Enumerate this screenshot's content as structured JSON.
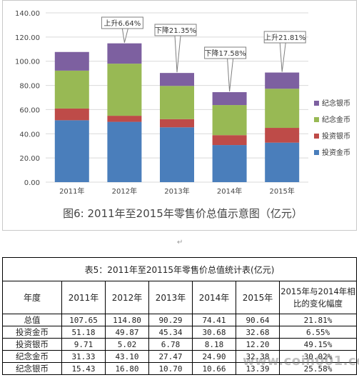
{
  "chart_data": {
    "type": "bar",
    "stacked": true,
    "categories": [
      "2011年",
      "2012年",
      "2013年",
      "2014年",
      "2015年"
    ],
    "series": [
      {
        "name": "投资金币",
        "values": [
          51.18,
          49.87,
          45.34,
          30.68,
          32.68
        ],
        "color": "#4a7ebb"
      },
      {
        "name": "投资银币",
        "values": [
          9.71,
          5.02,
          6.78,
          8.18,
          12.2
        ],
        "color": "#be4b48"
      },
      {
        "name": "纪念金币",
        "values": [
          31.33,
          43.1,
          27.47,
          24.9,
          32.38
        ],
        "color": "#98b954"
      },
      {
        "name": "纪念银币",
        "values": [
          15.43,
          16.8,
          10.7,
          10.66,
          13.39
        ],
        "color": "#7d60a0"
      }
    ],
    "legend_order": [
      "纪念银币",
      "纪念金币",
      "投资银币",
      "投资金币"
    ],
    "legend_placement": "right",
    "ylim": [
      0,
      140
    ],
    "yticks": [
      "0.00",
      "20.00",
      "40.00",
      "60.00",
      "80.00",
      "100.00",
      "120.00",
      "140.00"
    ],
    "grid": true,
    "callouts": [
      {
        "category": "2012年",
        "text": "上升6.64%"
      },
      {
        "category": "2013年",
        "text": "下降21.35%"
      },
      {
        "category": "2014年",
        "text": "下降17.58%"
      },
      {
        "category": "2015年",
        "text": "上升21.81%"
      }
    ],
    "caption": "图6: 2011年至2015年零售价总值示意图（亿元）"
  },
  "paragraph_mark": "↵",
  "table": {
    "title": "表5：2011年至20115年零售价总值统计表(亿元)",
    "headers": [
      "年度",
      "2011年",
      "2012年",
      "2013年",
      "2014年",
      "2015年",
      "2015年与2014年相比的变化幅度"
    ],
    "rows": [
      {
        "name": "总值",
        "cells": [
          "107.65",
          "114.80",
          "90.29",
          "74.41",
          "90.64",
          "21.81%"
        ]
      },
      {
        "name": "投资金币",
        "cells": [
          "51.18",
          "49.87",
          "45.34",
          "30.68",
          "32.68",
          "6.55%"
        ]
      },
      {
        "name": "投资银币",
        "cells": [
          "9.71",
          "5.02",
          "6.78",
          "8.18",
          "12.20",
          "49.15%"
        ]
      },
      {
        "name": "纪念金币",
        "cells": [
          "31.33",
          "43.10",
          "27.47",
          "24.90",
          "32.38",
          "30.02%"
        ]
      },
      {
        "name": "纪念银币",
        "cells": [
          "15.43",
          "16.80",
          "10.70",
          "10.66",
          "13.39",
          "25.58%"
        ]
      }
    ]
  },
  "watermark": "www.coin001.com"
}
